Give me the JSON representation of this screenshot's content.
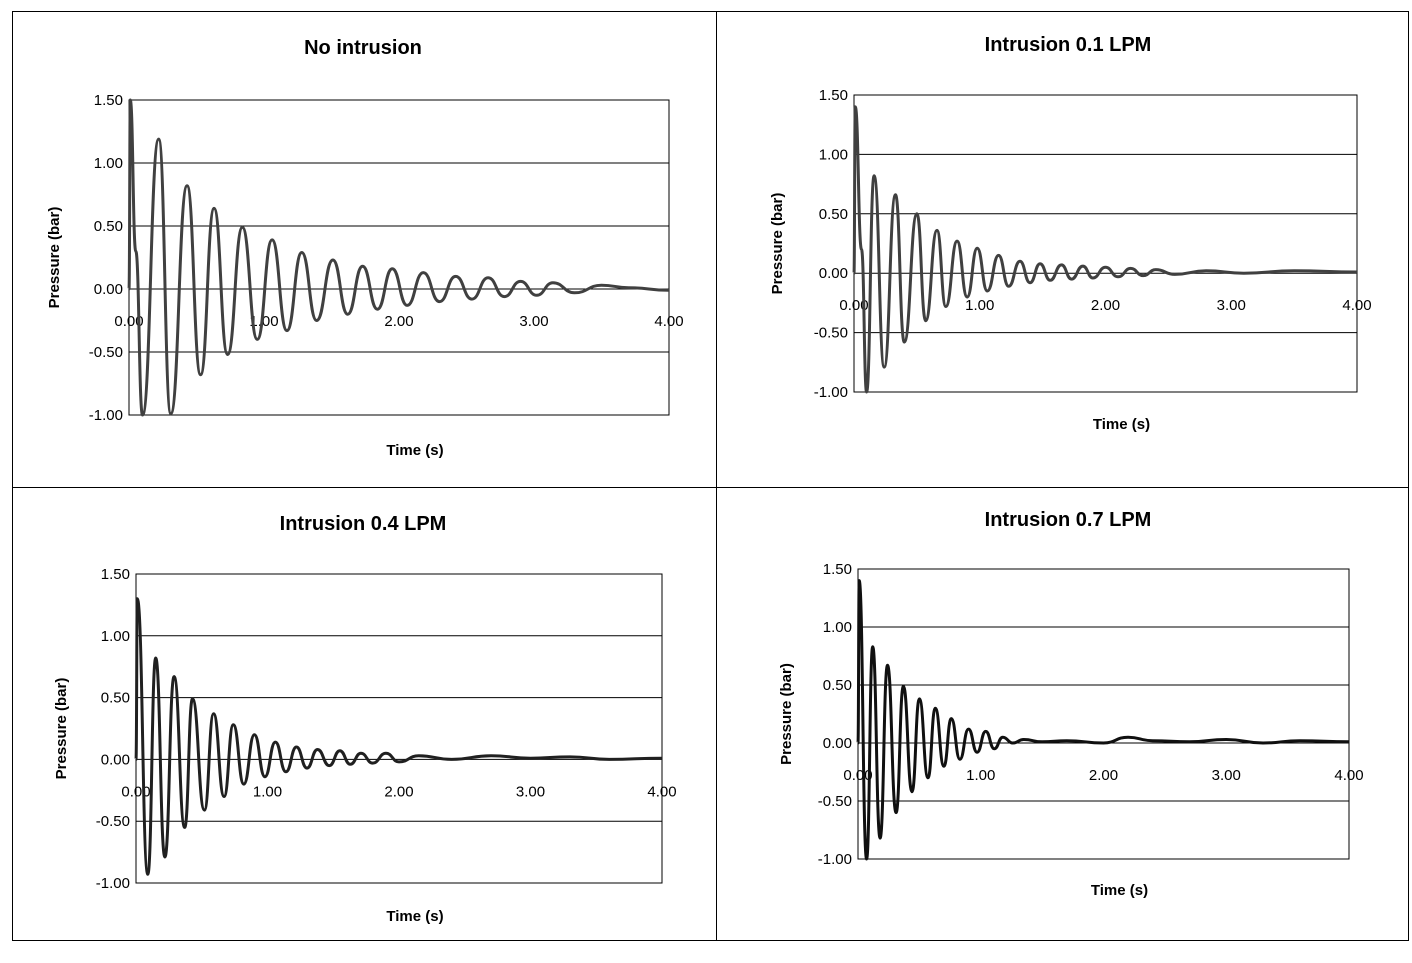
{
  "chart_data": [
    {
      "type": "line",
      "title": "No intrusion",
      "xlabel": "Time (s)",
      "ylabel": "Pressure (bar)",
      "xlim": [
        0,
        4
      ],
      "ylim": [
        -1,
        1.5
      ],
      "x_ticks": [
        "0.00",
        "1.00",
        "2.00",
        "3.00",
        "4.00"
      ],
      "y_ticks": [
        "1.50",
        "1.00",
        "0.50",
        "0.00",
        "-0.50",
        "-1.00"
      ],
      "grid": "horizontal",
      "line_color": "#404040",
      "series": [
        {
          "x": [
            0.0,
            0.01,
            0.05,
            0.1,
            0.22,
            0.31,
            0.43,
            0.53,
            0.63,
            0.73,
            0.84,
            0.95,
            1.06,
            1.17,
            1.28,
            1.39,
            1.51,
            1.62,
            1.73,
            1.84,
            1.95,
            2.06,
            2.18,
            2.3,
            2.42,
            2.54,
            2.66,
            2.78,
            2.9,
            3.02,
            3.14,
            3.3,
            3.5,
            3.7,
            4.0
          ],
          "y": [
            0.0,
            1.5,
            0.3,
            -1.0,
            1.19,
            -0.99,
            0.82,
            -0.68,
            0.64,
            -0.52,
            0.49,
            -0.4,
            0.39,
            -0.33,
            0.29,
            -0.25,
            0.23,
            -0.2,
            0.18,
            -0.16,
            0.16,
            -0.13,
            0.13,
            -0.1,
            0.1,
            -0.08,
            0.09,
            -0.06,
            0.06,
            -0.05,
            0.05,
            -0.03,
            0.03,
            0.01,
            -0.01
          ]
        }
      ]
    },
    {
      "type": "line",
      "title": "Intrusion 0.1 LPM",
      "xlabel": "Time (s)",
      "ylabel": "Pressure (bar)",
      "xlim": [
        0,
        4
      ],
      "ylim": [
        -1,
        1.5
      ],
      "x_ticks": [
        "0.00",
        "1.00",
        "2.00",
        "3.00",
        "4.00"
      ],
      "y_ticks": [
        "1.50",
        "1.00",
        "0.50",
        "0.00",
        "-0.50",
        "-1.00"
      ],
      "grid": "horizontal",
      "line_color": "#404040",
      "series": [
        {
          "x": [
            0.0,
            0.01,
            0.06,
            0.1,
            0.16,
            0.24,
            0.33,
            0.4,
            0.5,
            0.57,
            0.66,
            0.73,
            0.82,
            0.9,
            0.98,
            1.06,
            1.15,
            1.23,
            1.32,
            1.4,
            1.48,
            1.56,
            1.65,
            1.73,
            1.82,
            1.9,
            2.0,
            2.1,
            2.2,
            2.3,
            2.4,
            2.55,
            2.8,
            3.1,
            3.5,
            4.0
          ],
          "y": [
            0.0,
            1.4,
            0.2,
            -1.0,
            0.82,
            -0.79,
            0.66,
            -0.58,
            0.5,
            -0.4,
            0.36,
            -0.28,
            0.27,
            -0.2,
            0.21,
            -0.15,
            0.15,
            -0.11,
            0.1,
            -0.08,
            0.08,
            -0.06,
            0.07,
            -0.05,
            0.06,
            -0.04,
            0.05,
            -0.03,
            0.04,
            -0.02,
            0.03,
            -0.01,
            0.02,
            0.0,
            0.02,
            0.01
          ]
        }
      ]
    },
    {
      "type": "line",
      "title": "Intrusion 0.4 LPM",
      "xlabel": "Time (s)",
      "ylabel": "Pressure (bar)",
      "xlim": [
        0,
        4
      ],
      "ylim": [
        -1,
        1.5
      ],
      "x_ticks": [
        "0.00",
        "1.00",
        "2.00",
        "3.00",
        "4.00"
      ],
      "y_ticks": [
        "1.50",
        "1.00",
        "0.50",
        "0.00",
        "-0.50",
        "-1.00"
      ],
      "grid": "horizontal",
      "line_color": "#202020",
      "series": [
        {
          "x": [
            0.0,
            0.01,
            0.09,
            0.15,
            0.22,
            0.29,
            0.37,
            0.43,
            0.52,
            0.59,
            0.67,
            0.74,
            0.82,
            0.9,
            0.98,
            1.06,
            1.14,
            1.22,
            1.3,
            1.38,
            1.47,
            1.55,
            1.63,
            1.71,
            1.8,
            1.9,
            2.0,
            2.15,
            2.4,
            2.7,
            3.0,
            3.3,
            3.6,
            4.0
          ],
          "y": [
            0.0,
            1.3,
            -0.93,
            0.82,
            -0.79,
            0.67,
            -0.55,
            0.49,
            -0.41,
            0.37,
            -0.3,
            0.28,
            -0.2,
            0.2,
            -0.14,
            0.14,
            -0.1,
            0.1,
            -0.07,
            0.08,
            -0.05,
            0.07,
            -0.04,
            0.05,
            -0.03,
            0.05,
            -0.02,
            0.03,
            0.0,
            0.03,
            0.01,
            0.02,
            0.0,
            0.01
          ]
        }
      ]
    },
    {
      "type": "line",
      "title": "Intrusion 0.7 LPM",
      "xlabel": "Time (s)",
      "ylabel": "Pressure (bar)",
      "xlim": [
        0,
        4
      ],
      "ylim": [
        -1,
        1.5
      ],
      "x_ticks": [
        "0.00",
        "1.00",
        "2.00",
        "3.00",
        "4.00"
      ],
      "y_ticks": [
        "1.50",
        "1.00",
        "0.50",
        "0.00",
        "-0.50",
        "-1.00"
      ],
      "grid": "horizontal",
      "line_color": "#101010",
      "series": [
        {
          "x": [
            0.0,
            0.01,
            0.07,
            0.12,
            0.18,
            0.24,
            0.31,
            0.37,
            0.44,
            0.5,
            0.57,
            0.63,
            0.7,
            0.76,
            0.83,
            0.9,
            0.97,
            1.04,
            1.11,
            1.18,
            1.26,
            1.35,
            1.5,
            1.7,
            2.0,
            2.2,
            2.4,
            2.7,
            3.0,
            3.3,
            3.6,
            4.0
          ],
          "y": [
            0.0,
            1.4,
            -1.0,
            0.83,
            -0.82,
            0.67,
            -0.6,
            0.49,
            -0.42,
            0.38,
            -0.3,
            0.3,
            -0.2,
            0.21,
            -0.14,
            0.12,
            -0.08,
            0.1,
            -0.05,
            0.05,
            0.0,
            0.03,
            0.01,
            0.02,
            0.0,
            0.05,
            0.02,
            0.01,
            0.03,
            0.0,
            0.02,
            0.01
          ]
        }
      ]
    }
  ]
}
